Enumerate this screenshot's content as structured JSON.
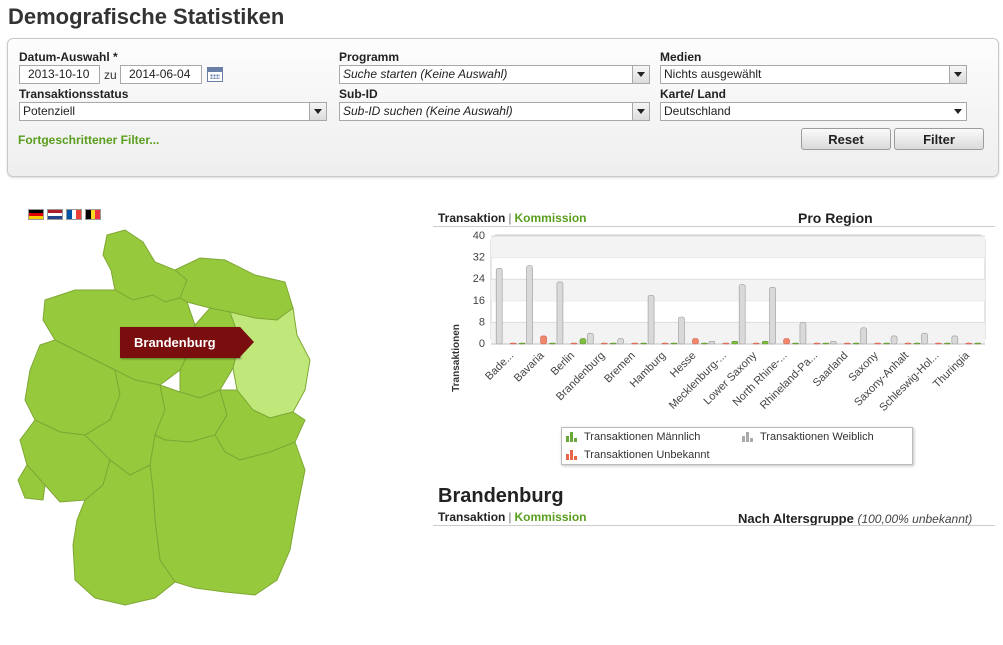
{
  "page": {
    "title": "Demografische Statistiken"
  },
  "filters": {
    "date": {
      "label": "Datum-Auswahl *",
      "from": "2013-10-10",
      "connector": "zu",
      "to": "2014-06-04"
    },
    "program": {
      "label": "Programm",
      "value": "Suche starten (Keine Auswahl)"
    },
    "media": {
      "label": "Medien",
      "value": "Nichts ausgewählt"
    },
    "transaction_status": {
      "label": "Transaktionsstatus",
      "value": "Potenziell"
    },
    "sub_id": {
      "label": "Sub-ID",
      "value": "Sub-ID suchen (Keine Auswahl)"
    },
    "map_country": {
      "label": "Karte/ Land",
      "value": "Deutschland"
    },
    "advanced_link": "Fortgeschrittener Filter...",
    "reset_label": "Reset",
    "filter_label": "Filter"
  },
  "flags": [
    "flag-de-icon",
    "flag-nl-icon",
    "flag-fr-icon",
    "flag-be-icon"
  ],
  "map": {
    "selected_region": "Brandenburg",
    "fill_color": "#97c93d",
    "highlight_color": "#bfe77a"
  },
  "region_chart": {
    "toggle": {
      "transaction": "Transaktion",
      "separator": "|",
      "commission": "Kommission"
    },
    "title": "Pro Region"
  },
  "legend": {
    "male": "Transaktionen Männlich",
    "female": "Transaktionen Weiblich",
    "unknown": "Transaktionen Unbekannt"
  },
  "chart_data": {
    "type": "bar",
    "ylabel": "Transaktionen",
    "ylim": [
      0,
      40
    ],
    "yticks": [
      0,
      8,
      16,
      24,
      32,
      40
    ],
    "categories": [
      "Bade...",
      "Bavaria",
      "Berlin",
      "Brandenburg",
      "Bremen",
      "Hamburg",
      "Hesse",
      "Mecklenburg-...",
      "Lower Saxony",
      "North Rhine-...",
      "Rhineland-Pa...",
      "Saarland",
      "Saxony",
      "Saxony-Anhalt",
      "Schleswig-Hol...",
      "Thuringia"
    ],
    "series": [
      {
        "name": "Transaktionen Männlich",
        "color": "#7fbf3f",
        "values": [
          0,
          0,
          2,
          0,
          0,
          0,
          0,
          1,
          1,
          0,
          0,
          0,
          0,
          0,
          0,
          0
        ]
      },
      {
        "name": "Transaktionen Weiblich",
        "color": "#d9d9d9",
        "values": [
          28,
          29,
          23,
          4,
          2,
          18,
          10,
          1,
          22,
          21,
          8,
          1,
          6,
          3,
          4,
          3
        ]
      },
      {
        "name": "Transaktionen Unbekannt",
        "color": "#f0866a",
        "values": [
          0,
          3,
          0,
          0,
          0,
          0,
          2,
          0,
          0,
          2,
          0,
          0,
          0,
          0,
          0,
          0
        ]
      }
    ],
    "grid": true
  },
  "detail": {
    "heading": "Brandenburg",
    "toggle": {
      "transaction": "Transaktion",
      "separator": "|",
      "commission": "Kommission"
    },
    "age_title": "Nach Altersgruppe",
    "age_note": "(100,00% unbekannt)"
  }
}
